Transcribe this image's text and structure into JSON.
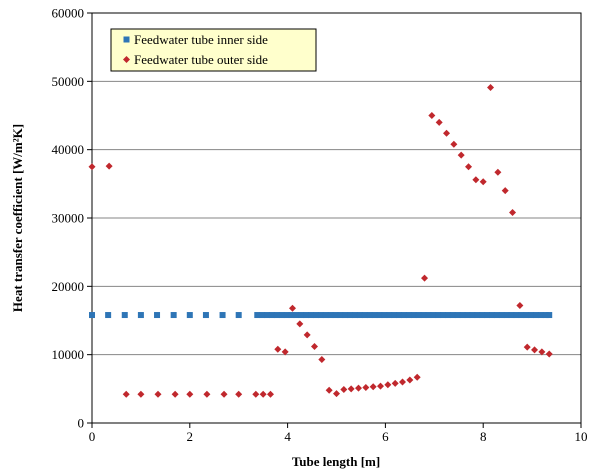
{
  "chart_data": {
    "type": "scatter",
    "xlabel": "Tube length [m]",
    "ylabel": "Heat transfer coefficient [W/m²K]",
    "xlim": [
      0,
      10
    ],
    "ylim": [
      0,
      60000
    ],
    "xticks": [
      "0",
      "2",
      "4",
      "6",
      "8",
      "10"
    ],
    "yticks": [
      "0",
      "10000",
      "20000",
      "30000",
      "40000",
      "50000",
      "60000"
    ],
    "grid": "horizontal",
    "legend_position": "top-left",
    "series": [
      {
        "name": "Feedwater tube inner side",
        "marker": "square",
        "color": "#2E75B6",
        "points": [
          [
            0.0,
            15800
          ],
          [
            0.33,
            15800
          ],
          [
            0.67,
            15800
          ],
          [
            1.0,
            15800
          ],
          [
            1.33,
            15800
          ],
          [
            1.67,
            15800
          ],
          [
            2.0,
            15800
          ],
          [
            2.33,
            15800
          ],
          [
            2.67,
            15800
          ],
          [
            3.0,
            15800
          ],
          [
            3.38,
            15800
          ],
          [
            3.48,
            15800
          ],
          [
            3.58,
            15800
          ],
          [
            3.68,
            15800
          ],
          [
            3.78,
            15800
          ],
          [
            3.88,
            15800
          ],
          [
            3.98,
            15800
          ],
          [
            4.08,
            15800
          ],
          [
            4.18,
            15800
          ],
          [
            4.28,
            15800
          ],
          [
            4.38,
            15800
          ],
          [
            4.48,
            15800
          ],
          [
            4.58,
            15800
          ],
          [
            4.68,
            15800
          ],
          [
            4.78,
            15800
          ],
          [
            4.88,
            15800
          ],
          [
            4.98,
            15800
          ],
          [
            5.08,
            15800
          ],
          [
            5.18,
            15800
          ],
          [
            5.28,
            15800
          ],
          [
            5.38,
            15800
          ],
          [
            5.48,
            15800
          ],
          [
            5.58,
            15800
          ],
          [
            5.68,
            15800
          ],
          [
            5.78,
            15800
          ],
          [
            5.88,
            15800
          ],
          [
            5.98,
            15800
          ],
          [
            6.08,
            15800
          ],
          [
            6.18,
            15800
          ],
          [
            6.28,
            15800
          ],
          [
            6.38,
            15800
          ],
          [
            6.48,
            15800
          ],
          [
            6.58,
            15800
          ],
          [
            6.68,
            15800
          ],
          [
            6.78,
            15800
          ],
          [
            6.88,
            15800
          ],
          [
            6.98,
            15800
          ],
          [
            7.08,
            15800
          ],
          [
            7.18,
            15800
          ],
          [
            7.28,
            15800
          ],
          [
            7.38,
            15800
          ],
          [
            7.48,
            15800
          ],
          [
            7.58,
            15800
          ],
          [
            7.68,
            15800
          ],
          [
            7.78,
            15800
          ],
          [
            7.88,
            15800
          ],
          [
            7.98,
            15800
          ],
          [
            8.08,
            15800
          ],
          [
            8.18,
            15800
          ],
          [
            8.28,
            15800
          ],
          [
            8.38,
            15800
          ],
          [
            8.48,
            15800
          ],
          [
            8.58,
            15800
          ],
          [
            8.68,
            15800
          ],
          [
            8.78,
            15800
          ],
          [
            8.88,
            15800
          ],
          [
            8.98,
            15800
          ],
          [
            9.08,
            15800
          ],
          [
            9.18,
            15800
          ],
          [
            9.28,
            15800
          ],
          [
            9.35,
            15800
          ]
        ]
      },
      {
        "name": "Feedwater tube outer side",
        "marker": "diamond",
        "color": "#C0282D",
        "points": [
          [
            0.0,
            37500
          ],
          [
            0.35,
            37600
          ],
          [
            0.7,
            4200
          ],
          [
            1.0,
            4200
          ],
          [
            1.35,
            4200
          ],
          [
            1.7,
            4200
          ],
          [
            2.0,
            4200
          ],
          [
            2.35,
            4200
          ],
          [
            2.7,
            4200
          ],
          [
            3.0,
            4200
          ],
          [
            3.35,
            4200
          ],
          [
            3.5,
            4200
          ],
          [
            3.65,
            4200
          ],
          [
            3.8,
            10800
          ],
          [
            3.95,
            10400
          ],
          [
            4.1,
            16800
          ],
          [
            4.25,
            14500
          ],
          [
            4.4,
            12900
          ],
          [
            4.55,
            11200
          ],
          [
            4.7,
            9300
          ],
          [
            4.85,
            4800
          ],
          [
            5.0,
            4300
          ],
          [
            5.15,
            4900
          ],
          [
            5.3,
            5000
          ],
          [
            5.45,
            5100
          ],
          [
            5.6,
            5200
          ],
          [
            5.75,
            5300
          ],
          [
            5.9,
            5400
          ],
          [
            6.05,
            5600
          ],
          [
            6.2,
            5800
          ],
          [
            6.35,
            6000
          ],
          [
            6.5,
            6300
          ],
          [
            6.65,
            6700
          ],
          [
            6.8,
            21200
          ],
          [
            6.95,
            45000
          ],
          [
            7.1,
            44000
          ],
          [
            7.25,
            42400
          ],
          [
            7.4,
            40800
          ],
          [
            7.55,
            39200
          ],
          [
            7.7,
            37500
          ],
          [
            7.85,
            35600
          ],
          [
            8.0,
            35300
          ],
          [
            8.15,
            49100
          ],
          [
            8.3,
            36700
          ],
          [
            8.45,
            34000
          ],
          [
            8.6,
            30800
          ],
          [
            8.75,
            17200
          ],
          [
            8.9,
            11100
          ],
          [
            9.05,
            10700
          ],
          [
            9.2,
            10400
          ],
          [
            9.35,
            10100
          ]
        ]
      }
    ]
  }
}
